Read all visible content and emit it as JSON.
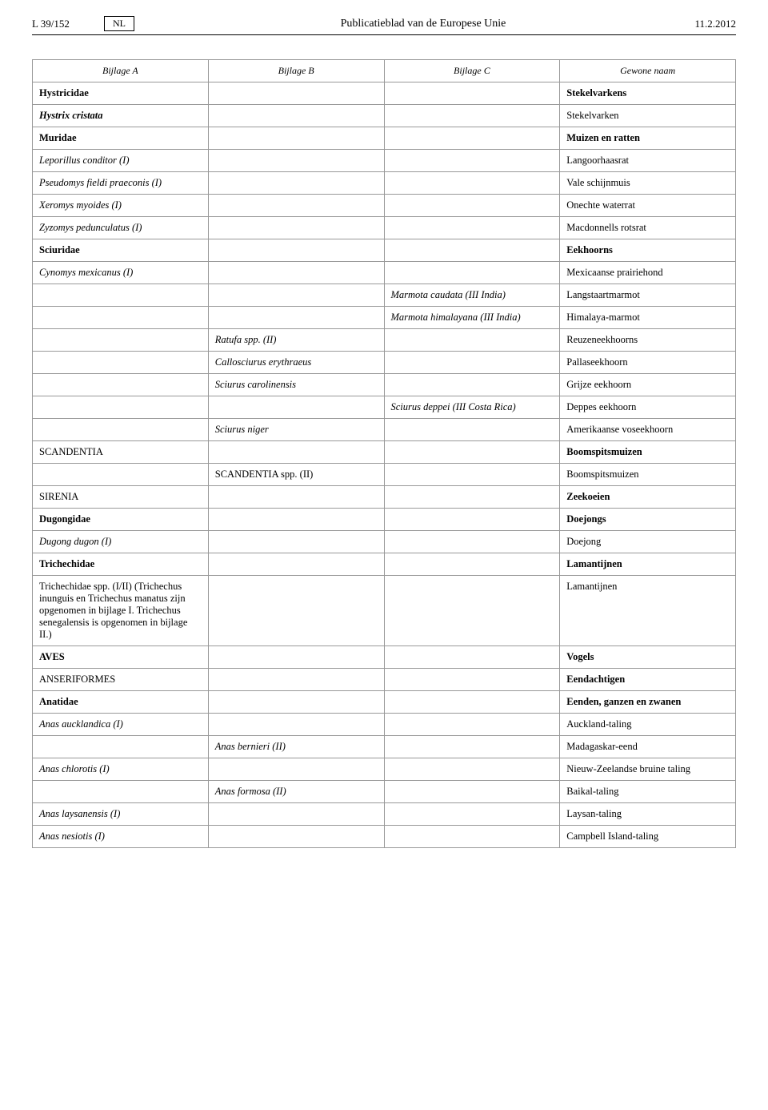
{
  "header": {
    "page_code": "L 39/152",
    "language": "NL",
    "title": "Publicatieblad van de Europese Unie",
    "date": "11.2.2012"
  },
  "columns": {
    "a": "Bijlage A",
    "b": "Bijlage B",
    "c": "Bijlage C",
    "d": "Gewone naam"
  },
  "rows": [
    {
      "a": {
        "text": "Hystricidae",
        "style": "bold"
      },
      "d": {
        "text": "Stekelvarkens",
        "style": "bold"
      }
    },
    {
      "a": {
        "text": "Hystrix cristata",
        "style": "bold-italic"
      },
      "d": {
        "text": "Stekelvarken"
      }
    },
    {
      "a": {
        "text": "Muridae",
        "style": "bold"
      },
      "d": {
        "text": "Muizen en ratten",
        "style": "bold"
      }
    },
    {
      "a": {
        "text": "Leporillus conditor (I)",
        "style": "italic"
      },
      "d": {
        "text": "Langoorhaasrat"
      }
    },
    {
      "a": {
        "text": "Pseudomys fieldi praeconis (I)",
        "style": "italic"
      },
      "d": {
        "text": "Vale schijnmuis"
      }
    },
    {
      "a": {
        "text": "Xeromys myoides (I)",
        "style": "italic"
      },
      "d": {
        "text": "Onechte waterrat"
      }
    },
    {
      "a": {
        "text": "Zyzomys pedunculatus (I)",
        "style": "italic"
      },
      "d": {
        "text": "Macdonnells rotsrat"
      }
    },
    {
      "a": {
        "text": "Sciuridae",
        "style": "bold"
      },
      "d": {
        "text": "Eekhoorns",
        "style": "bold"
      }
    },
    {
      "a": {
        "text": "Cynomys mexicanus (I)",
        "style": "italic"
      },
      "d": {
        "text": "Mexicaanse prairiehond"
      }
    },
    {
      "c": {
        "text": "Marmota caudata (III India)",
        "style": "italic"
      },
      "d": {
        "text": "Langstaartmarmot"
      }
    },
    {
      "c": {
        "text": "Marmota himalayana (III India)",
        "style": "italic"
      },
      "d": {
        "text": "Himalaya-marmot"
      }
    },
    {
      "b": {
        "text": "Ratufa spp. (II)",
        "style": "italic"
      },
      "d": {
        "text": "Reuzeneekhoorns"
      }
    },
    {
      "b": {
        "text": "Callosciurus erythraeus",
        "style": "italic"
      },
      "d": {
        "text": "Pallaseekhoorn"
      }
    },
    {
      "b": {
        "text": "Sciurus carolinensis",
        "style": "italic"
      },
      "d": {
        "text": "Grijze eekhoorn"
      }
    },
    {
      "c": {
        "text": "Sciurus deppei (III Costa Rica)",
        "style": "italic"
      },
      "d": {
        "text": "Deppes eekhoorn"
      }
    },
    {
      "b": {
        "text": "Sciurus niger",
        "style": "italic"
      },
      "d": {
        "text": "Amerikaanse voseekhoorn"
      }
    },
    {
      "a": {
        "text": "SCANDENTIA"
      },
      "d": {
        "text": "Boomspitsmuizen",
        "style": "bold"
      }
    },
    {
      "b": {
        "text": "SCANDENTIA spp. (II)"
      },
      "d": {
        "text": "Boomspitsmuizen"
      }
    },
    {
      "a": {
        "text": "SIRENIA"
      },
      "d": {
        "text": "Zeekoeien",
        "style": "bold"
      }
    },
    {
      "a": {
        "text": "Dugongidae",
        "style": "bold"
      },
      "d": {
        "text": "Doejongs",
        "style": "bold"
      }
    },
    {
      "a": {
        "text": "Dugong dugon (I)",
        "style": "italic"
      },
      "d": {
        "text": "Doejong"
      }
    },
    {
      "a": {
        "text": "Trichechidae",
        "style": "bold"
      },
      "d": {
        "text": "Lamantijnen",
        "style": "bold"
      }
    },
    {
      "a": {
        "text": "Trichechidae spp. (I/II) (Trichechus inunguis en Trichechus manatus zijn opgenomen in bijlage I. Trichechus senegalensis is opgenomen in bijlage II.)"
      },
      "d": {
        "text": "Lamantijnen"
      }
    },
    {
      "a": {
        "text": "AVES",
        "style": "bold"
      },
      "d": {
        "text": "Vogels",
        "style": "bold"
      }
    },
    {
      "a": {
        "text": "ANSERIFORMES"
      },
      "d": {
        "text": "Eendachtigen",
        "style": "bold"
      }
    },
    {
      "a": {
        "text": "Anatidae",
        "style": "bold"
      },
      "d": {
        "text": "Eenden, ganzen en zwanen",
        "style": "bold"
      }
    },
    {
      "a": {
        "text": "Anas aucklandica (I)",
        "style": "italic"
      },
      "d": {
        "text": "Auckland-taling"
      }
    },
    {
      "b": {
        "text": "Anas bernieri (II)",
        "style": "italic"
      },
      "d": {
        "text": "Madagaskar-eend"
      }
    },
    {
      "a": {
        "text": "Anas chlorotis (I)",
        "style": "italic"
      },
      "d": {
        "text": "Nieuw-Zeelandse bruine taling"
      }
    },
    {
      "b": {
        "text": "Anas formosa (II)",
        "style": "italic"
      },
      "d": {
        "text": "Baikal-taling"
      }
    },
    {
      "a": {
        "text": "Anas laysanensis (I)",
        "style": "italic"
      },
      "d": {
        "text": "Laysan-taling"
      }
    },
    {
      "a": {
        "text": "Anas nesiotis (I)",
        "style": "italic"
      },
      "d": {
        "text": "Campbell Island-taling"
      }
    }
  ]
}
